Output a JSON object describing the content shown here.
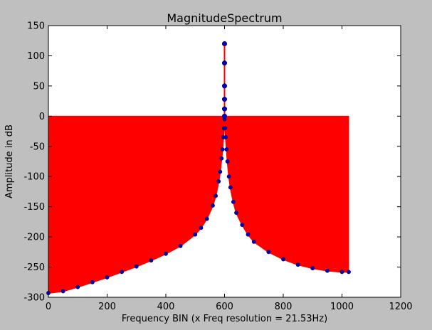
{
  "chart_data": {
    "type": "line",
    "title": "MagnitudeSpectrum",
    "xlabel": "Frequency BIN (x Freq resolution = 21.53Hz)",
    "ylabel": "Amplitude in dB",
    "xlim": [
      0,
      1200
    ],
    "ylim": [
      -300,
      150
    ],
    "xticks": [
      "0",
      "200",
      "400",
      "600",
      "800",
      "1000",
      "1200"
    ],
    "yticks": [
      "150",
      "100",
      "50",
      "0",
      "-50",
      "-100",
      "-150",
      "-200",
      "-250",
      "-300"
    ],
    "grid": false,
    "fill_color": "#ff0000",
    "line_color": "#ff0000",
    "marker_color": "#0000cc",
    "stem_points": [
      {
        "x": 600,
        "y": 120
      },
      {
        "x": 600,
        "y": 88
      },
      {
        "x": 600,
        "y": 50
      },
      {
        "x": 600,
        "y": 28
      },
      {
        "x": 600,
        "y": 12
      },
      {
        "x": 600,
        "y": 0
      }
    ],
    "series": [
      {
        "x": [
          0,
          50,
          100,
          150,
          200,
          250,
          300,
          350,
          400,
          450,
          500,
          520,
          540,
          560,
          570,
          580,
          585,
          590,
          593,
          596,
          598,
          600,
          602,
          604,
          607,
          610,
          615,
          620,
          630,
          640,
          660,
          680,
          700,
          750,
          800,
          850,
          900,
          950,
          1000,
          1023
        ],
        "y": [
          -293,
          -290,
          -283,
          -275,
          -267,
          -258,
          -249,
          -239,
          -228,
          -215,
          -196,
          -185,
          -170,
          -148,
          -132,
          -108,
          -92,
          -70,
          -55,
          -35,
          -20,
          -5,
          -20,
          -35,
          -55,
          -75,
          -100,
          -118,
          -142,
          -160,
          -180,
          -196,
          -208,
          -225,
          -237,
          -246,
          -252,
          -256,
          -258,
          -258
        ]
      }
    ]
  }
}
